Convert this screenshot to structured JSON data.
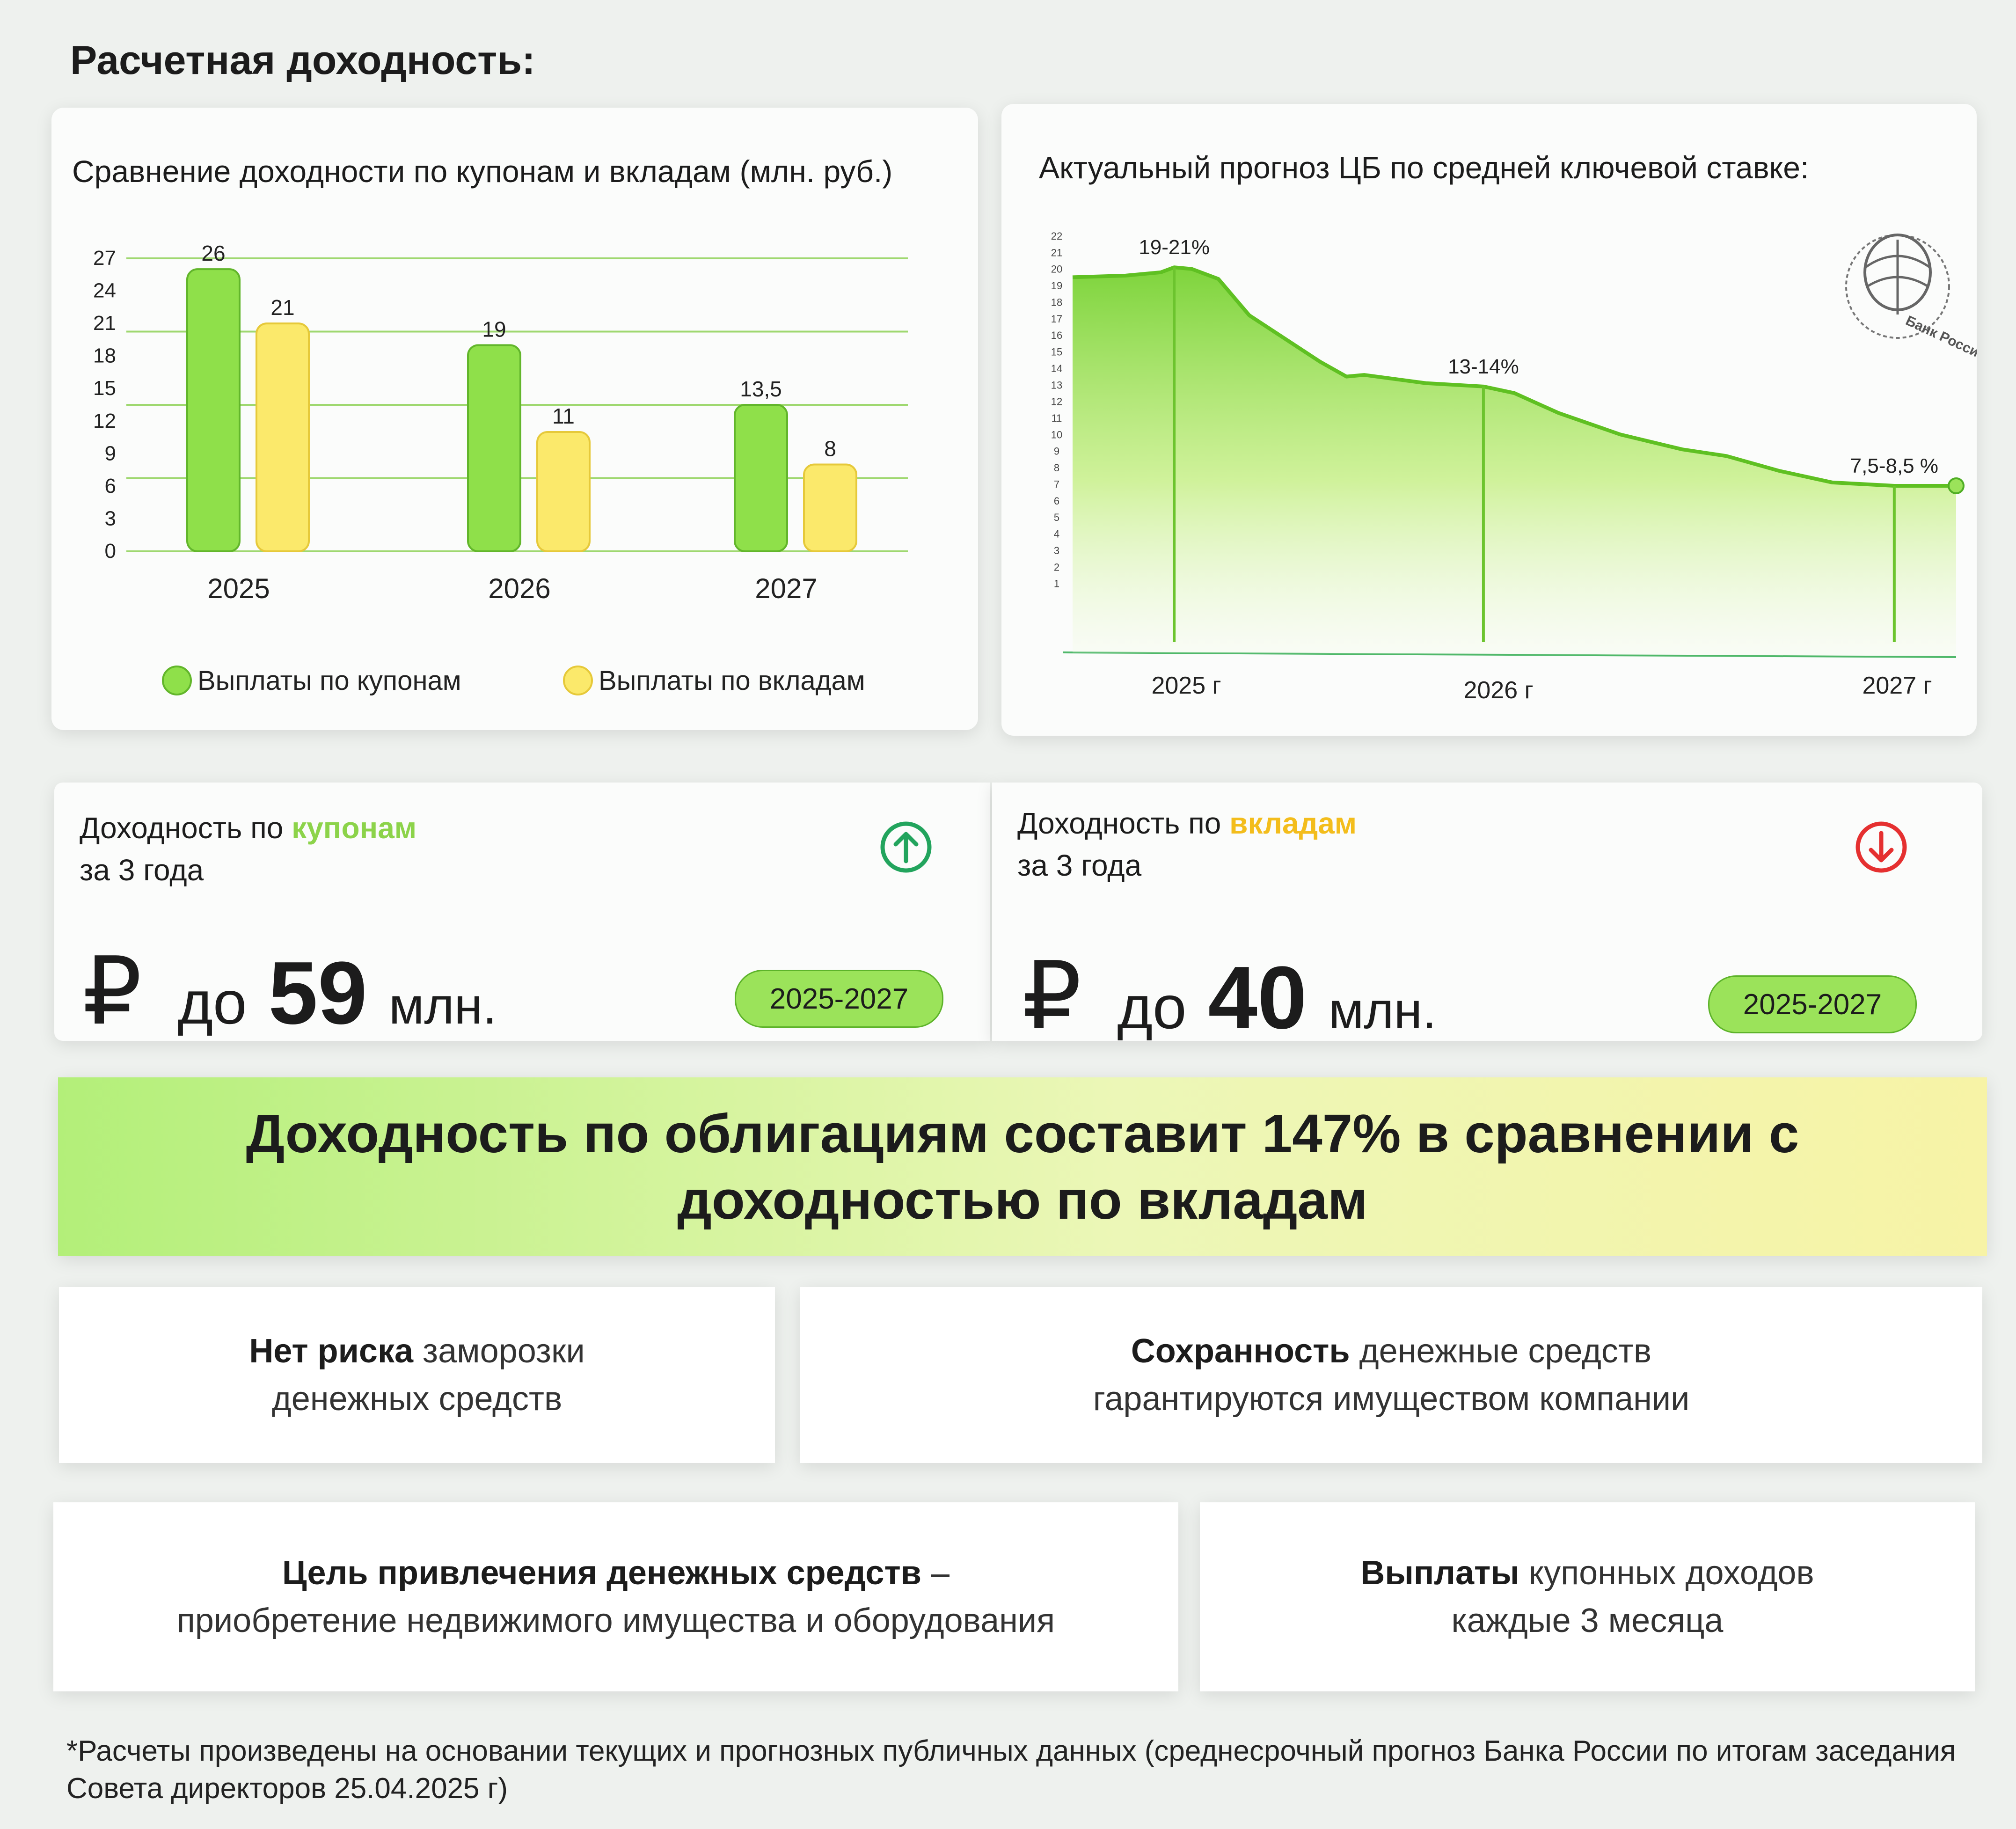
{
  "page_title": "Расчетная доходность:",
  "bar_chart_title": "Сравнение доходности  по купонам и вкладам (млн. руб.)",
  "line_chart_title": "Актуальный прогноз ЦБ по средней ключевой ставке:",
  "cb_logo_text": "Банк России",
  "chart_data": [
    {
      "type": "bar",
      "title": "Сравнение доходности  по купонам и вкладам (млн. руб.)",
      "categories": [
        "2025",
        "2026",
        "2027"
      ],
      "y_ticks": [
        0,
        3,
        6,
        9,
        12,
        15,
        18,
        21,
        24,
        27
      ],
      "ylim": [
        0,
        27
      ],
      "series": [
        {
          "name": "Выплаты по купонам",
          "values": [
            26,
            19,
            13.5
          ],
          "labels": [
            "26",
            "19",
            "13,5"
          ],
          "color": "#8fe04a"
        },
        {
          "name": "Выплаты по вкладам",
          "values": [
            21,
            11,
            8
          ],
          "labels": [
            "21",
            "11",
            "8"
          ],
          "color": "#fbe96b"
        }
      ],
      "legend": "bottom",
      "grid": true
    },
    {
      "type": "area",
      "title": "Актуальный прогноз ЦБ по средней ключевой ставке:",
      "y_ticks": [
        1,
        2,
        3,
        4,
        5,
        6,
        7,
        8,
        9,
        10,
        11,
        12,
        13,
        14,
        15,
        16,
        17,
        18,
        19,
        20,
        21,
        22
      ],
      "ylim": [
        0,
        22
      ],
      "x_labels": [
        "2025 г",
        "2026 г",
        "2027 г"
      ],
      "points": [
        [
          0,
          19.5
        ],
        [
          0.06,
          19.6
        ],
        [
          0.1,
          19.8
        ],
        [
          0.115,
          20.1
        ],
        [
          0.135,
          20.0
        ],
        [
          0.165,
          19.4
        ],
        [
          0.2,
          17.2
        ],
        [
          0.24,
          15.8
        ],
        [
          0.28,
          14.4
        ],
        [
          0.31,
          13.5
        ],
        [
          0.33,
          13.6
        ],
        [
          0.4,
          13.1
        ],
        [
          0.465,
          12.9
        ],
        [
          0.5,
          12.5
        ],
        [
          0.55,
          11.3
        ],
        [
          0.62,
          10.0
        ],
        [
          0.69,
          9.1
        ],
        [
          0.74,
          8.7
        ],
        [
          0.8,
          7.8
        ],
        [
          0.86,
          7.1
        ],
        [
          0.93,
          6.9
        ],
        [
          1,
          6.9
        ]
      ],
      "annotations": [
        {
          "x": 0.115,
          "text": "19-21%"
        },
        {
          "x": 0.465,
          "text": "13-14%"
        },
        {
          "x": 0.93,
          "text": "7,5-8,5 %"
        }
      ],
      "color": "#7ed43c"
    }
  ],
  "coupons_card": {
    "prefix": "Доходность по ",
    "highlight": "купонам",
    "highlight_color": "#8cd34a",
    "sub": "за 3 года",
    "currency": "₽",
    "pre": "до",
    "amount": "59",
    "unit": "млн.",
    "period": "2025-2027",
    "icon": "arrow-up-circle-icon",
    "icon_color": "#22a45d"
  },
  "deposits_card": {
    "prefix": "Доходность по ",
    "highlight": "вкладам",
    "highlight_color": "#f3bd1c",
    "sub": "за 3 года",
    "currency": "₽",
    "pre": "до",
    "amount": "40",
    "unit": "млн.",
    "period": "2025-2027",
    "icon": "arrow-down-circle-icon",
    "icon_color": "#e53030"
  },
  "banner": "Доходность по облигациям составит 147% в сравнении с доходностью по вкладам",
  "features": [
    {
      "bold": "Нет риска",
      "rest": " заморозки",
      "line2": "денежных средств"
    },
    {
      "bold": "Сохранность",
      "rest": " денежные средств",
      "line2": "гарантируются имуществом компании"
    },
    {
      "bold": "Цель привлечения денежных средств",
      "rest": " –",
      "line2": "приобретение недвижимого имущества и оборудования"
    },
    {
      "bold": "Выплаты",
      "rest": " купонных доходов",
      "line2": "каждые 3 месяца"
    }
  ],
  "footnote": "*Расчеты произведены на основании текущих и прогнозных публичных данных (среднесрочный прогноз Банка России по итогам заседания Совета  директоров 25.04.2025 г)"
}
